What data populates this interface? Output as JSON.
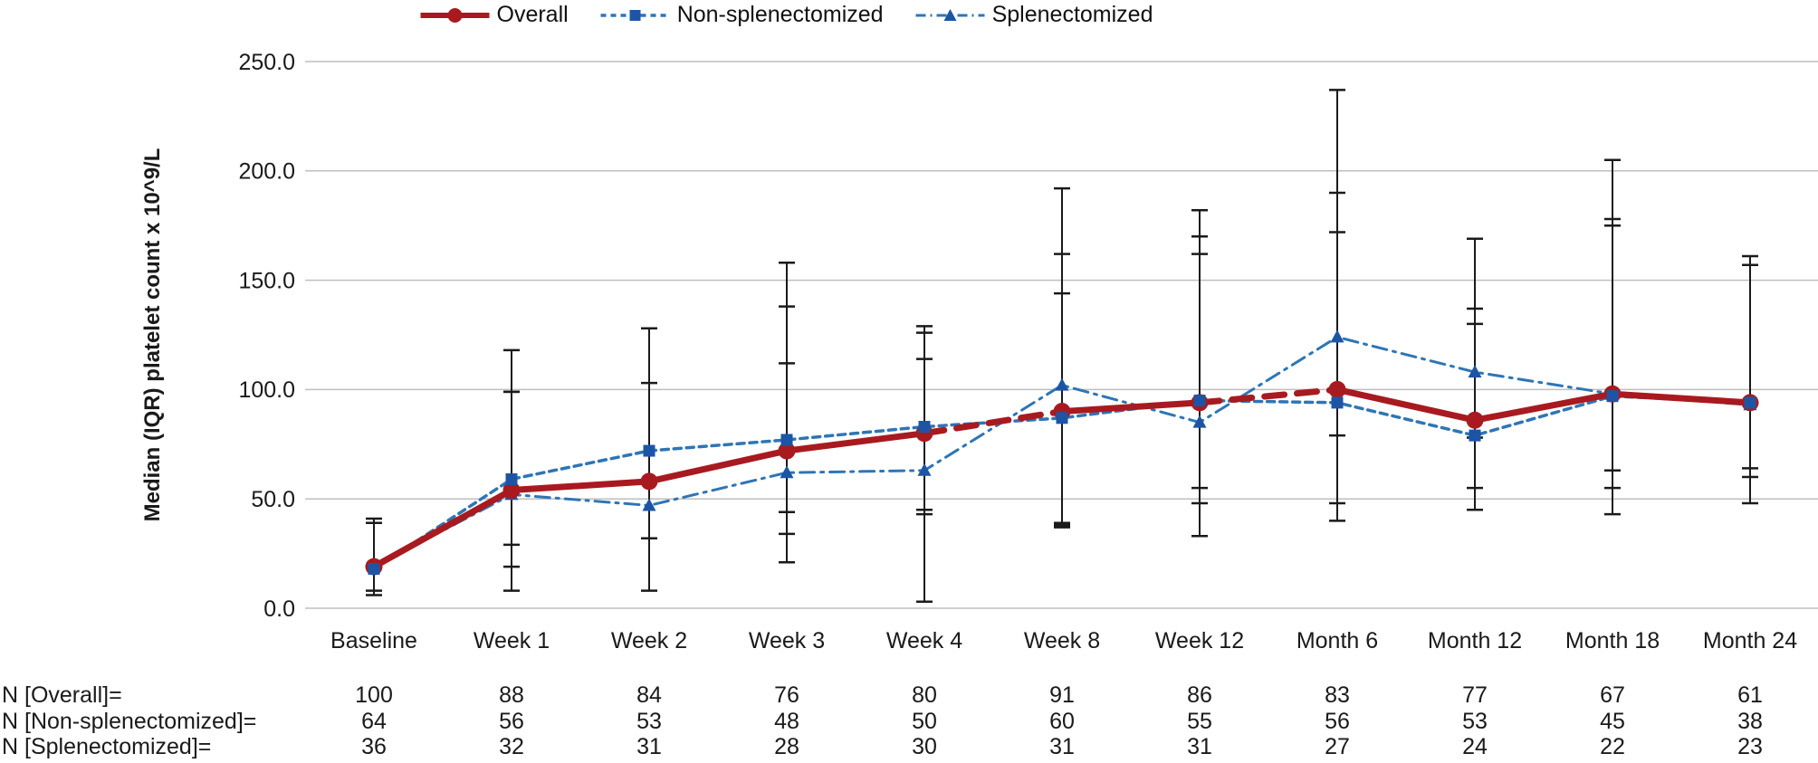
{
  "legend": {
    "items": [
      {
        "label": "Overall"
      },
      {
        "label": "Non-splenectomized"
      },
      {
        "label": "Splenectomized"
      }
    ]
  },
  "colors": {
    "overall_red": "#a81a1f",
    "series_blue": "#2e75b6",
    "marker_blue": "#1d55a5",
    "grid": "#bfbfbf",
    "error_bar": "#1a1a1a",
    "text": "#1a1a1a"
  },
  "chart_data": {
    "type": "line",
    "title": "",
    "xlabel": "",
    "ylabel": "Median (IQR) platelet count x 10^9/L",
    "ylim": [
      0,
      250
    ],
    "yticks": [
      0,
      50,
      100,
      150,
      200,
      250
    ],
    "ytick_labels": [
      "0.0",
      "50.0",
      "100.0",
      "150.0",
      "200.0",
      "250.0"
    ],
    "grid": "horizontal",
    "legend_position": "top",
    "categories": [
      "Baseline",
      "Week 1",
      "Week 2",
      "Week 3",
      "Week 4",
      "Week 8",
      "Week 12",
      "Month 6",
      "Month 12",
      "Month 18",
      "Month 24"
    ],
    "series": [
      {
        "name": "Overall",
        "marker": "circle",
        "style": "solid",
        "dashed_segments": [
          [
            4,
            5
          ],
          [
            6,
            7
          ]
        ],
        "values": [
          19,
          54,
          58,
          72,
          80,
          90,
          94,
          100,
          86,
          98,
          94
        ]
      },
      {
        "name": "Non-splenectomized",
        "marker": "square",
        "style": "dashed",
        "values": [
          18,
          59,
          72,
          77,
          83,
          87,
          95,
          94,
          79,
          97,
          94
        ]
      },
      {
        "name": "Splenectomized",
        "marker": "triangle",
        "style": "dash-dot",
        "values": [
          19,
          52,
          47,
          62,
          63,
          102,
          85,
          124,
          108,
          98,
          93
        ]
      }
    ],
    "error_bars_iqr": [
      [
        [
          6,
          41
        ],
        [
          8,
          39
        ]
      ],
      [
        [
          8,
          118
        ],
        [
          19,
          99
        ],
        [
          29,
          99
        ]
      ],
      [
        [
          8,
          128
        ],
        [
          32,
          103
        ]
      ],
      [
        [
          21,
          158
        ],
        [
          34,
          138
        ],
        [
          44,
          112
        ]
      ],
      [
        [
          3,
          129
        ],
        [
          45,
          126
        ],
        [
          43,
          114
        ]
      ],
      [
        [
          38,
          192
        ],
        [
          39,
          162
        ],
        [
          37,
          144
        ]
      ],
      [
        [
          33,
          182
        ],
        [
          48,
          170
        ],
        [
          55,
          162
        ]
      ],
      [
        [
          40,
          237
        ],
        [
          48,
          190
        ],
        [
          79,
          172
        ]
      ],
      [
        [
          45,
          169
        ],
        [
          55,
          137
        ],
        [
          78,
          130
        ]
      ],
      [
        [
          43,
          205
        ],
        [
          55,
          178
        ],
        [
          63,
          175
        ]
      ],
      [
        [
          48,
          161
        ],
        [
          60,
          157
        ],
        [
          64,
          157
        ]
      ]
    ]
  },
  "n_table": {
    "rows": [
      {
        "label": "N [Overall]=",
        "values": [
          100,
          88,
          84,
          76,
          80,
          91,
          86,
          83,
          77,
          67,
          61
        ]
      },
      {
        "label": "N [Non-splenectomized]=",
        "values": [
          64,
          56,
          53,
          48,
          50,
          60,
          55,
          56,
          53,
          45,
          38
        ]
      },
      {
        "label": "N [Splenectomized]=",
        "values": [
          36,
          32,
          31,
          28,
          30,
          31,
          31,
          27,
          24,
          22,
          23
        ]
      }
    ]
  }
}
